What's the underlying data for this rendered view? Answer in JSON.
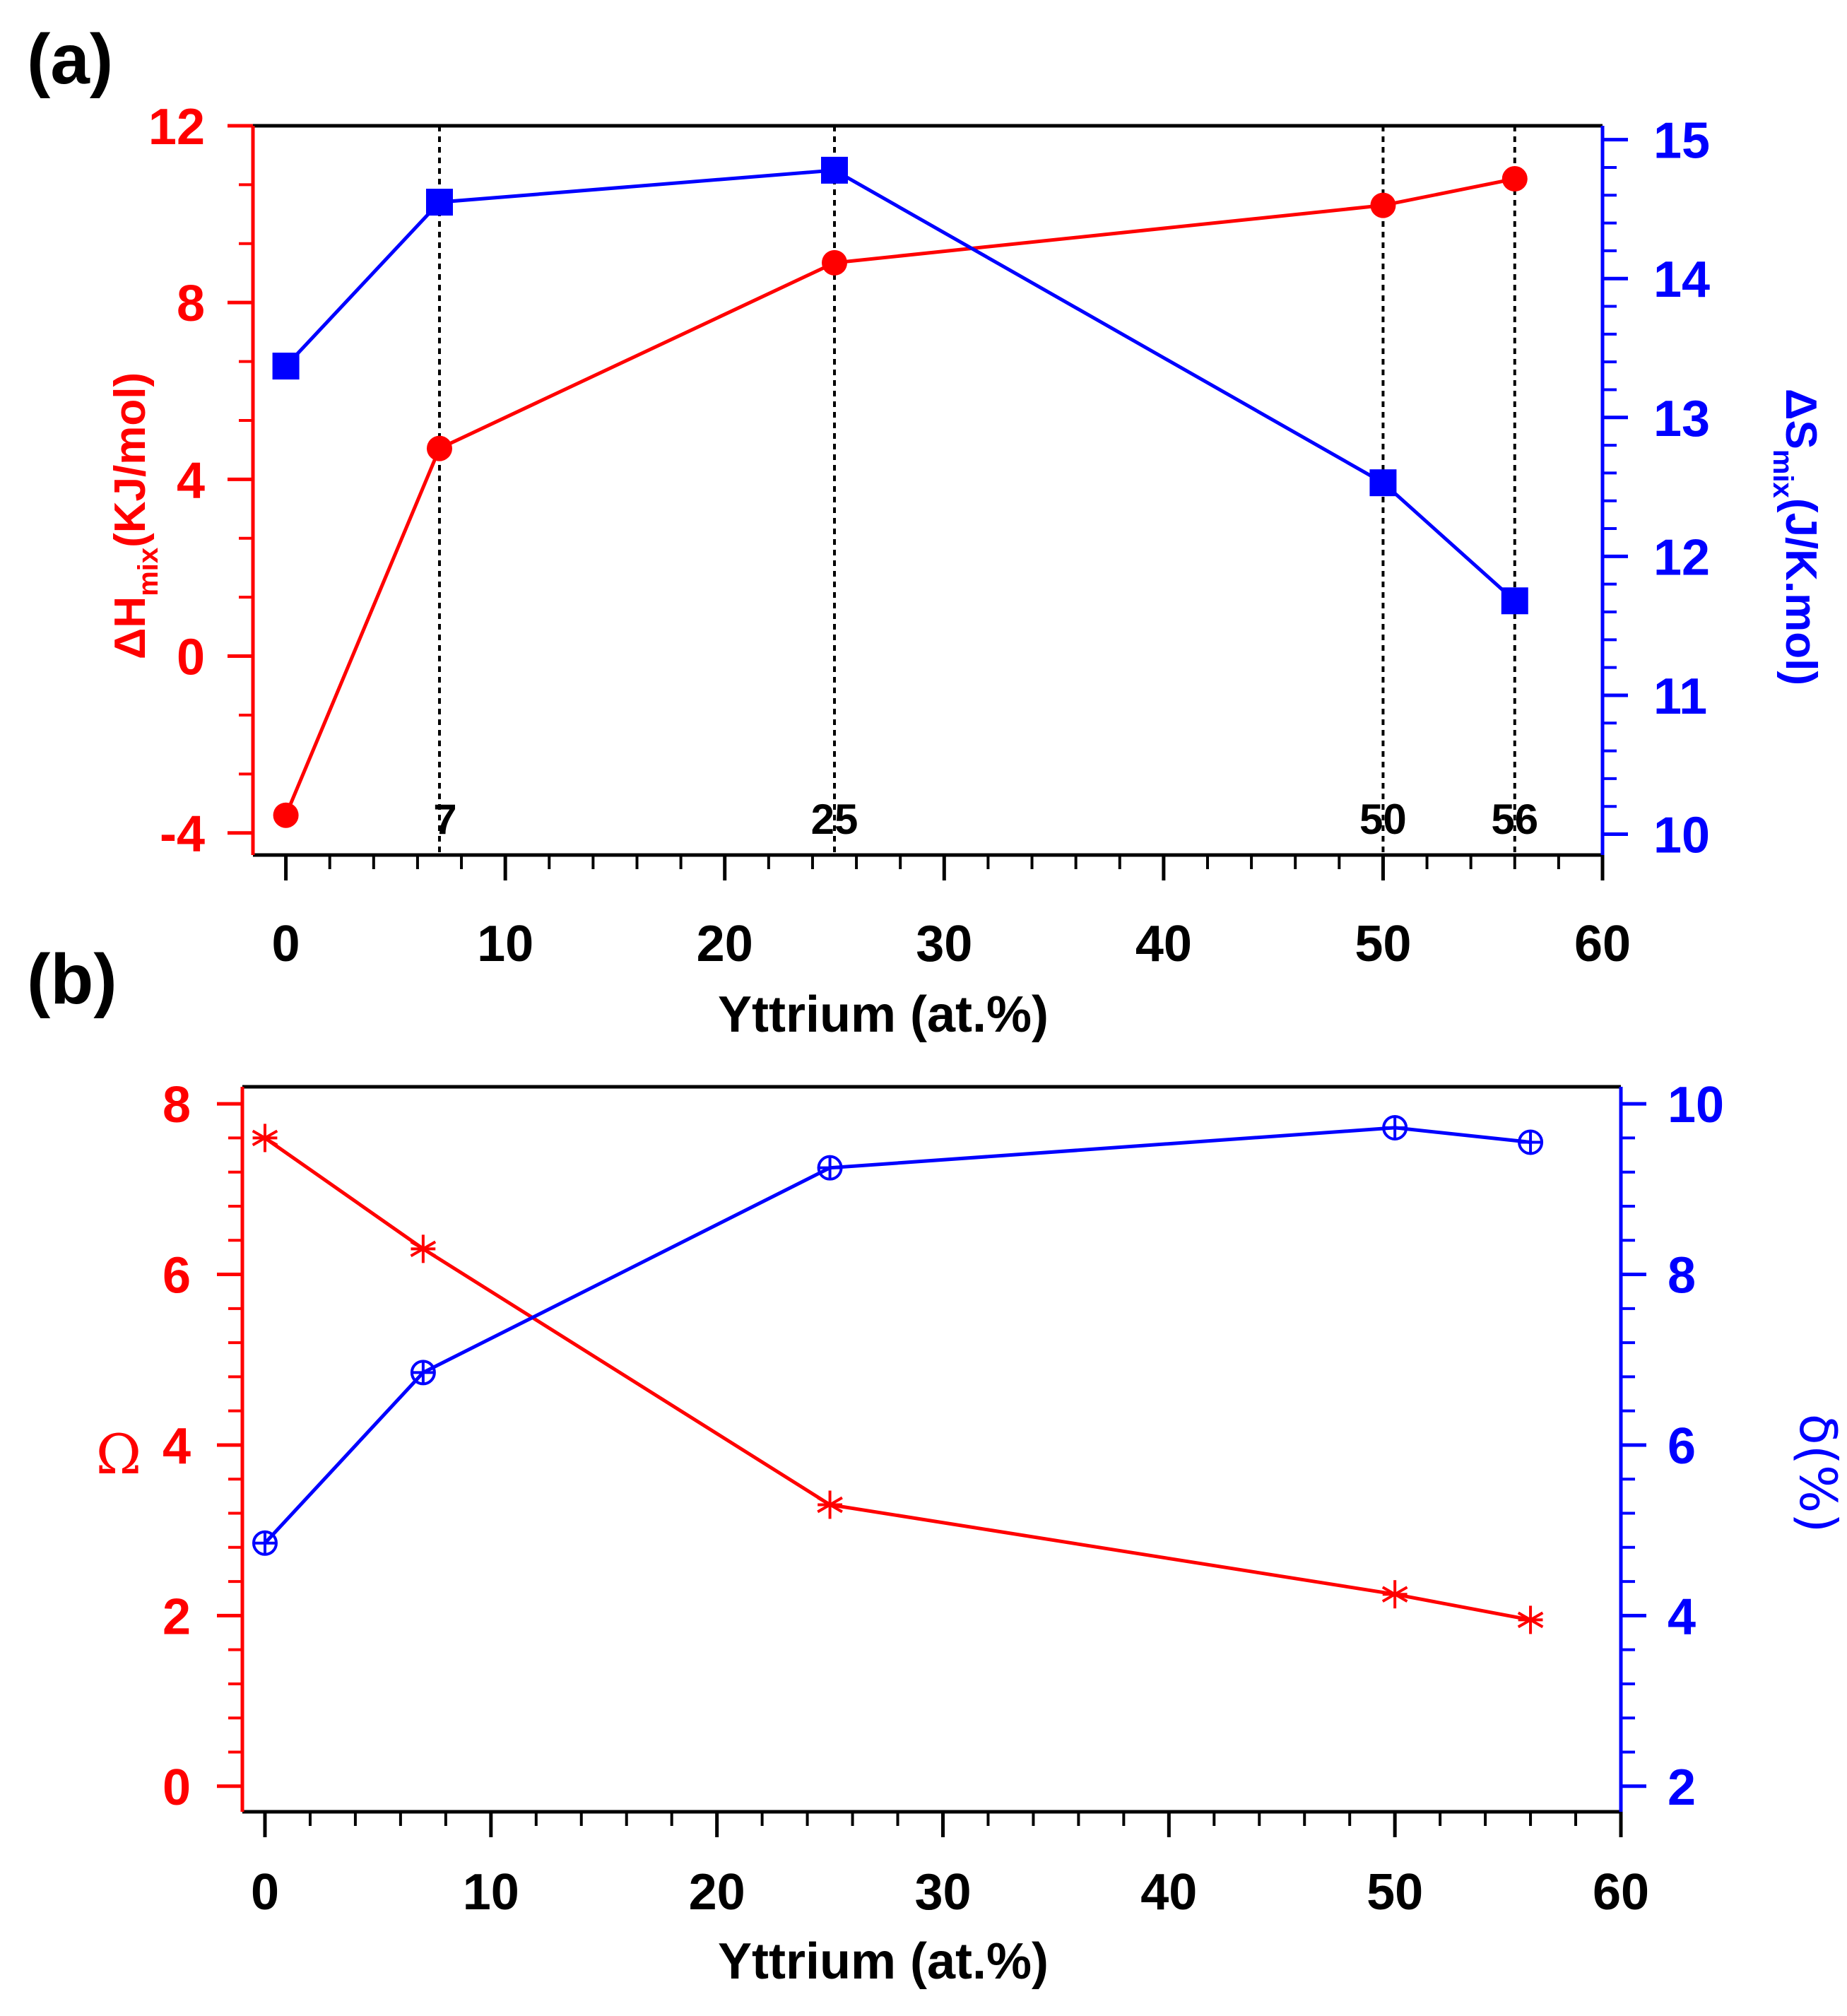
{
  "colors": {
    "left_series": "#ff0000",
    "right_series": "#0000ff",
    "axis": "#000000"
  },
  "chart_data": [
    {
      "panel": "(a)",
      "type": "line",
      "xlabel": "Yttrium (at.%)",
      "xlim": [
        -1.5,
        60
      ],
      "xticks": [
        0,
        10,
        20,
        30,
        40,
        50,
        60
      ],
      "ylabel_left": {
        "main": "ΔH",
        "sub": "mix",
        "tail": "(KJ/mol)"
      },
      "ylim_left": [
        -4.5,
        12
      ],
      "yticks_left": [
        -4,
        0,
        4,
        8,
        12
      ],
      "ylabel_right": {
        "main": "ΔS",
        "sub": "mix",
        "tail": "(J/K.mol)"
      },
      "ylim_right": [
        9.85,
        15.1
      ],
      "yticks_right": [
        10,
        11,
        12,
        13,
        14,
        15
      ],
      "series": [
        {
          "name": "ΔHmix",
          "axis": "left",
          "marker": "circle",
          "x": [
            0,
            7,
            25,
            50,
            56
          ],
          "y": [
            -3.6,
            4.7,
            8.9,
            10.2,
            10.8
          ]
        },
        {
          "name": "ΔSmix",
          "axis": "right",
          "marker": "square",
          "x": [
            0,
            7,
            25,
            50,
            56
          ],
          "y": [
            13.37,
            14.55,
            14.78,
            12.53,
            11.68
          ]
        }
      ],
      "reference_lines": [
        {
          "x": 7,
          "label": "7"
        },
        {
          "x": 25,
          "label": "25"
        },
        {
          "x": 50,
          "label": "50"
        },
        {
          "x": 56,
          "label": "56"
        }
      ],
      "grid": false
    },
    {
      "panel": "(b)",
      "type": "line",
      "xlabel": "Yttrium (at.%)",
      "xlim": [
        -1,
        60
      ],
      "xticks": [
        0,
        10,
        20,
        30,
        40,
        50,
        60
      ],
      "ylabel_left": "Ω",
      "ylim_left": [
        -0.3,
        8.2
      ],
      "yticks_left": [
        0,
        2,
        4,
        6,
        8
      ],
      "ylabel_right": "δ(%)",
      "ylim_right": [
        1.7,
        10.2
      ],
      "yticks_right": [
        2,
        4,
        6,
        8,
        10
      ],
      "series": [
        {
          "name": "Ω",
          "axis": "left",
          "marker": "asterisk",
          "x": [
            0,
            7,
            25,
            50,
            56
          ],
          "y": [
            7.6,
            6.3,
            3.3,
            2.25,
            1.95
          ]
        },
        {
          "name": "δ",
          "axis": "right",
          "marker": "circle-plus",
          "x": [
            0,
            7,
            25,
            50,
            56
          ],
          "y": [
            4.85,
            6.85,
            9.25,
            9.72,
            9.55
          ]
        }
      ],
      "grid": false
    }
  ]
}
